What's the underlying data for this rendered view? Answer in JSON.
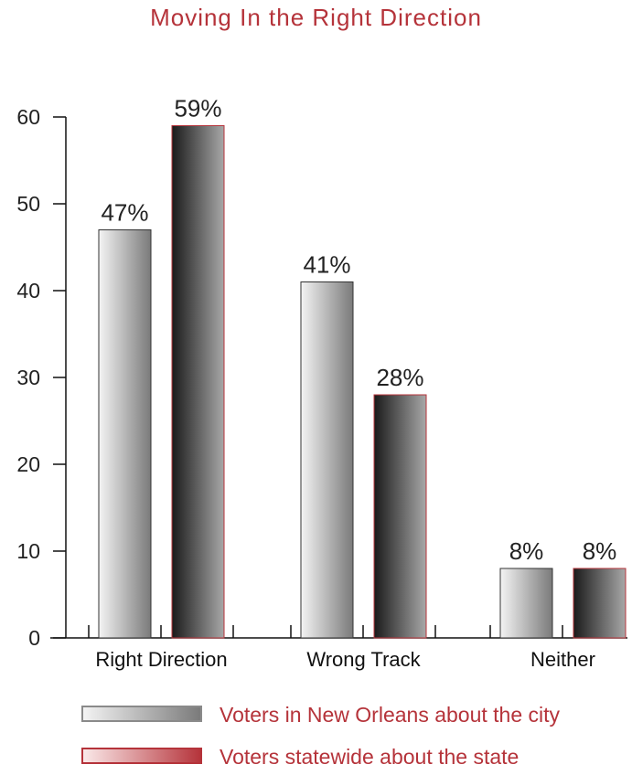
{
  "chart_data": {
    "type": "bar",
    "title": "Moving In the Right Direction",
    "xlabel": "",
    "ylabel": "",
    "ylim": [
      0,
      60
    ],
    "yticks": [
      0,
      10,
      20,
      30,
      40,
      50,
      60
    ],
    "categories": [
      "Right Direction",
      "Wrong Track",
      "Neither"
    ],
    "series": [
      {
        "name": "Voters in New Orleans about the city",
        "values": [
          47,
          41,
          8
        ],
        "labels": [
          "47%",
          "41%",
          "8%"
        ]
      },
      {
        "name": "Voters statewide about the state",
        "values": [
          59,
          28,
          8
        ],
        "labels": [
          "59%",
          "28%",
          "8%"
        ]
      }
    ],
    "grid": false,
    "legend_position": "bottom",
    "colors": {
      "title": "#b5333a",
      "legend_text": "#b5333a",
      "series1_light": "#f4f4f4",
      "series1_dark": "#7a7a7a",
      "series2_light": "#a8a8a8",
      "series2_dark": "#1a1a1a",
      "series2_border": "#b5333a",
      "legend2_light": "#fbeaea",
      "legend2_dark": "#b5333a"
    }
  }
}
